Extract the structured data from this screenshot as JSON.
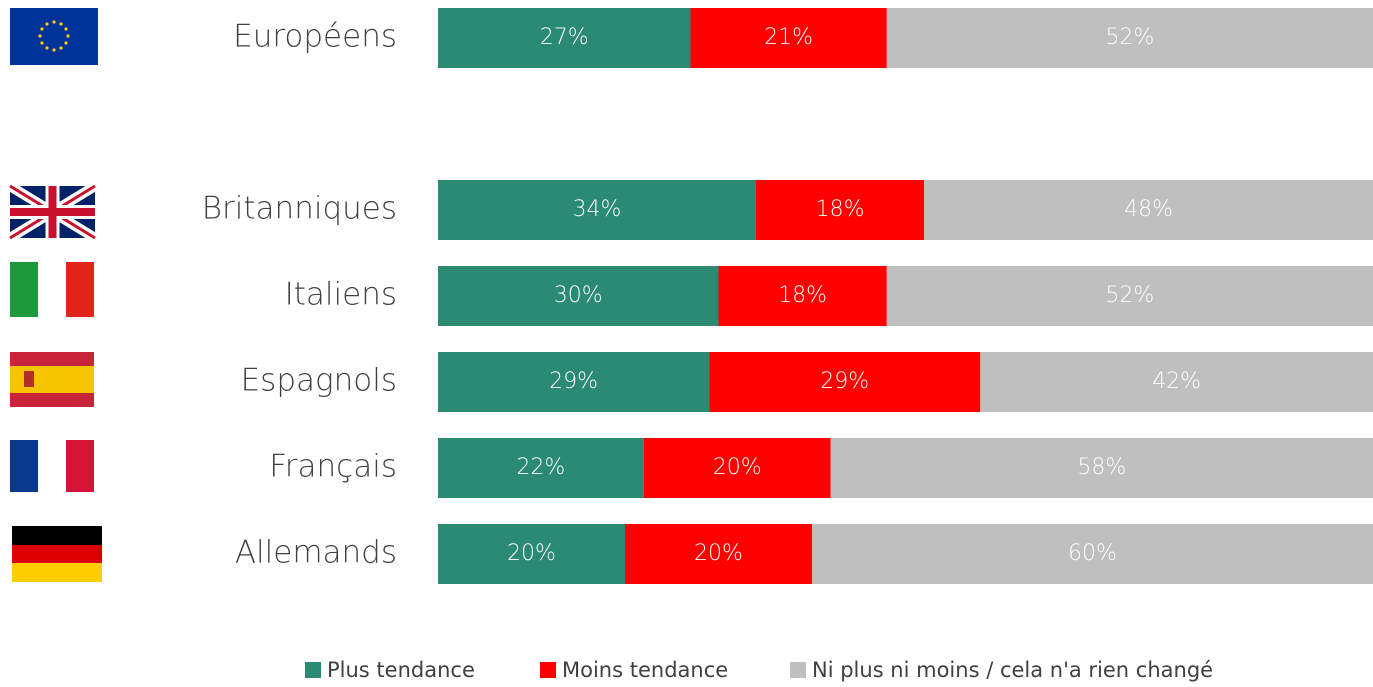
{
  "chart_data": {
    "type": "stacked-bar-horizontal",
    "categories": [
      "Européens",
      "Britanniques",
      "Italiens",
      "Espagnols",
      "Français",
      "Allemands"
    ],
    "xlim": [
      0,
      100
    ],
    "series": [
      {
        "name": "Plus tendance",
        "color": "#2a8a72",
        "values": [
          27,
          34,
          30,
          29,
          22,
          20
        ],
        "value_labels": [
          "27%",
          "34%",
          "30%",
          "29%",
          "22%",
          "20%"
        ]
      },
      {
        "name": "Moins tendance",
        "color": "#ff0000",
        "values": [
          21,
          18,
          18,
          29,
          20,
          20
        ],
        "value_labels": [
          "21%",
          "18%",
          "18%",
          "29%",
          "20%",
          "20%"
        ]
      },
      {
        "name": "Ni plus ni moins / cela n'a rien changé",
        "color": "#bfbfbf",
        "values": [
          52,
          48,
          52,
          42,
          58,
          60
        ],
        "value_labels": [
          "52%",
          "48%",
          "52%",
          "42%",
          "58%",
          "60%"
        ]
      }
    ],
    "legend": "bottom"
  }
}
